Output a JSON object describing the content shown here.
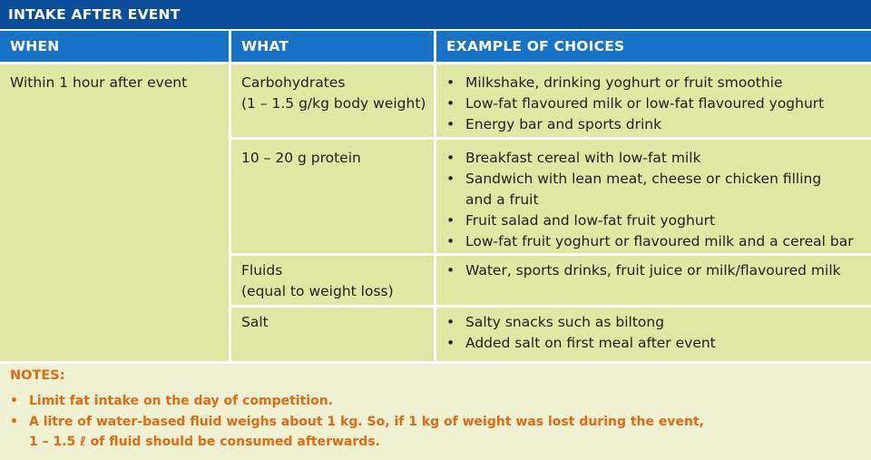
{
  "title": "INTAKE AFTER EVENT",
  "headers": {
    "when": "WHEN",
    "what": "WHAT",
    "examples": "EXAMPLE OF CHOICES"
  },
  "when_text": "Within 1 hour after event",
  "rows": [
    {
      "what": [
        "Carbohydrates",
        "(1 – 1.5 g/kg body weight)"
      ],
      "examples": [
        "Milkshake, drinking yoghurt or fruit smoothie",
        "Low-fat flavoured milk or low-fat flavoured yoghurt",
        "Energy bar and sports drink"
      ]
    },
    {
      "what": [
        "10 – 20 g protein"
      ],
      "examples": [
        "Breakfast cereal with low-fat milk",
        "Sandwich with lean meat, cheese or chicken filling",
        "and a fruit",
        "Fruit salad and low-fat fruit yoghurt",
        "Low-fat fruit yoghurt or flavoured milk and a cereal bar"
      ]
    },
    {
      "what": [
        "Fluids",
        "(equal to weight loss)"
      ],
      "examples": [
        "Water, sports drinks, fruit juice or milk/flavoured milk"
      ]
    },
    {
      "what": [
        "Salt"
      ],
      "examples": [
        "Salty snacks such as biltong",
        "Added salt on first meal after event"
      ]
    }
  ],
  "bullet": "•",
  "notes": {
    "title": "NOTES:",
    "items": [
      "Limit fat intake on the day of competition.",
      "A litre of water-based fluid weighs about 1 kg. So, if 1 kg of weight was lost during the event,",
      "1 – 1.5 ℓ of fluid should be consumed afterwards."
    ]
  },
  "colors": {
    "title_bg": "#0a4d9a",
    "header_bg": "#1773c7",
    "cell_bg": "#dfe7a3",
    "notes_bg": "#eef2d2",
    "notes_text": "#e46a12"
  }
}
